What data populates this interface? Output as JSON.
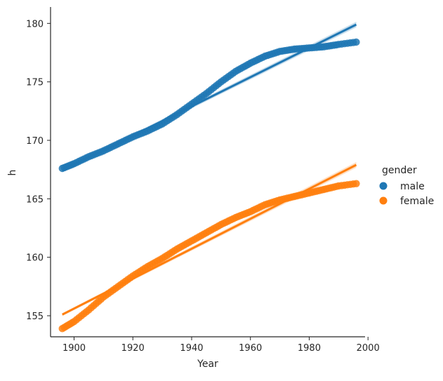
{
  "chart_data": {
    "type": "scatter",
    "xlabel": "Year",
    "ylabel": "h",
    "xlim": [
      1892,
      1999
    ],
    "ylim": [
      153.2,
      181.4
    ],
    "xticks": [
      1900,
      1920,
      1940,
      1960,
      1980,
      2000
    ],
    "yticks": [
      155,
      160,
      165,
      170,
      175,
      180
    ],
    "grid": false,
    "legend": {
      "title": "gender",
      "placement": "right",
      "entries": [
        "male",
        "female"
      ]
    },
    "series": [
      {
        "name": "male",
        "color": "#1f77b4",
        "points": [
          {
            "x": 1896,
            "y": 167.6
          },
          {
            "x": 1900,
            "y": 168.0
          },
          {
            "x": 1905,
            "y": 168.6
          },
          {
            "x": 1910,
            "y": 169.1
          },
          {
            "x": 1915,
            "y": 169.7
          },
          {
            "x": 1920,
            "y": 170.3
          },
          {
            "x": 1925,
            "y": 170.8
          },
          {
            "x": 1930,
            "y": 171.4
          },
          {
            "x": 1935,
            "y": 172.2
          },
          {
            "x": 1940,
            "y": 173.1
          },
          {
            "x": 1945,
            "y": 174.0
          },
          {
            "x": 1950,
            "y": 175.0
          },
          {
            "x": 1955,
            "y": 175.9
          },
          {
            "x": 1960,
            "y": 176.6
          },
          {
            "x": 1965,
            "y": 177.2
          },
          {
            "x": 1970,
            "y": 177.6
          },
          {
            "x": 1975,
            "y": 177.8
          },
          {
            "x": 1980,
            "y": 177.9
          },
          {
            "x": 1985,
            "y": 178.0
          },
          {
            "x": 1990,
            "y": 178.2
          },
          {
            "x": 1996,
            "y": 178.4
          }
        ],
        "fit": {
          "x": [
            1896,
            1996
          ],
          "y": [
            167.4,
            179.9
          ]
        }
      },
      {
        "name": "female",
        "color": "#ff7f0e",
        "points": [
          {
            "x": 1896,
            "y": 153.9
          },
          {
            "x": 1900,
            "y": 154.5
          },
          {
            "x": 1905,
            "y": 155.5
          },
          {
            "x": 1910,
            "y": 156.6
          },
          {
            "x": 1915,
            "y": 157.5
          },
          {
            "x": 1920,
            "y": 158.4
          },
          {
            "x": 1925,
            "y": 159.2
          },
          {
            "x": 1930,
            "y": 159.9
          },
          {
            "x": 1935,
            "y": 160.7
          },
          {
            "x": 1940,
            "y": 161.4
          },
          {
            "x": 1945,
            "y": 162.1
          },
          {
            "x": 1950,
            "y": 162.8
          },
          {
            "x": 1955,
            "y": 163.4
          },
          {
            "x": 1960,
            "y": 163.9
          },
          {
            "x": 1965,
            "y": 164.5
          },
          {
            "x": 1970,
            "y": 164.9
          },
          {
            "x": 1975,
            "y": 165.2
          },
          {
            "x": 1980,
            "y": 165.5
          },
          {
            "x": 1985,
            "y": 165.8
          },
          {
            "x": 1990,
            "y": 166.1
          },
          {
            "x": 1996,
            "y": 166.3
          }
        ],
        "fit": {
          "x": [
            1896,
            1996
          ],
          "y": [
            155.1,
            167.9
          ]
        }
      }
    ]
  }
}
